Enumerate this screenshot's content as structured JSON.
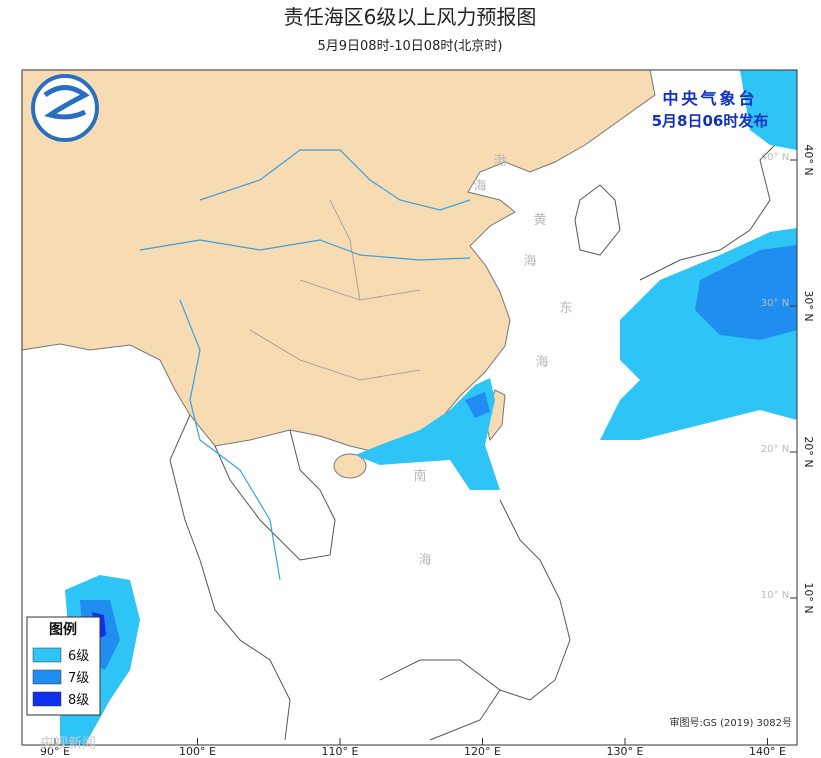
{
  "header": {
    "title": "责任海区6级以上风力预报图",
    "subtitle": "5月9日08时-10日08时(北京时)"
  },
  "issuer": {
    "name": "中央气象台",
    "time": "5月8日06时发布"
  },
  "sea_labels": [
    [
      "渤",
      "海"
    ],
    [
      "黄",
      "海"
    ],
    [
      "东",
      "海"
    ],
    [
      "南",
      "海"
    ]
  ],
  "lon_labels": [
    "90° E",
    "100° E",
    "110° E",
    "120° E",
    "130° E",
    "140° E"
  ],
  "lat_labels": [
    "40° N",
    "30° N",
    "20° N",
    "10° N"
  ],
  "legend": {
    "title": "图例",
    "items": [
      {
        "label": "6级",
        "color": "#2ec4f5"
      },
      {
        "label": "7级",
        "color": "#1f8ef0"
      },
      {
        "label": "8级",
        "color": "#1030f0"
      }
    ]
  },
  "approval": "审图号:GS (2019) 3082号",
  "watermark": "央视新闻"
}
